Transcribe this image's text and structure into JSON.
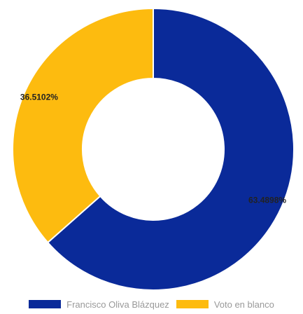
{
  "chart_data": {
    "type": "pie",
    "style": "donut",
    "title": "",
    "labels": [
      "Francisco Oliva Blázquez",
      "Voto en blanco"
    ],
    "values": [
      63.4898,
      36.5102
    ],
    "data_labels": [
      "63.4898%",
      "36.5102%"
    ],
    "colors": [
      "#0a2a99",
      "#fdbb0f"
    ],
    "legend_position": "bottom"
  },
  "legend": {
    "items": [
      {
        "label": "Francisco Oliva Blázquez",
        "color": "#0a2a99"
      },
      {
        "label": "Voto en blanco",
        "color": "#fdbb0f"
      }
    ]
  }
}
